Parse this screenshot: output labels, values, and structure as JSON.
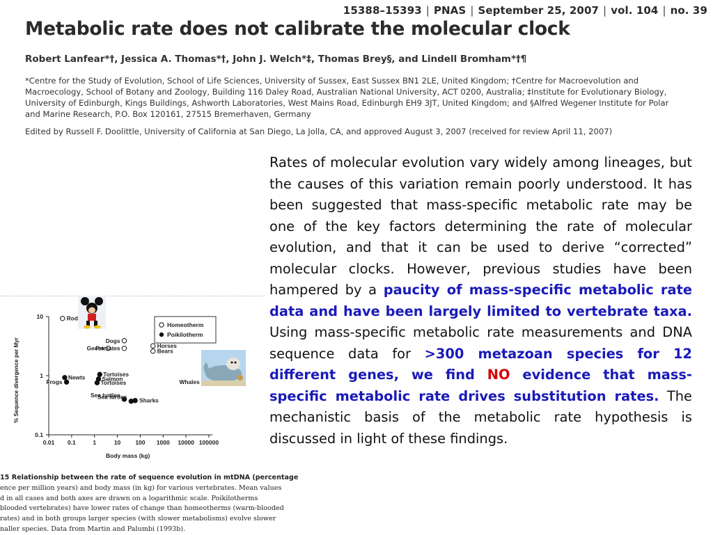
{
  "header": {
    "pages": "15388–15393",
    "journal": "PNAS",
    "date": "September 25, 2007",
    "volume": "vol. 104",
    "number": "no. 39"
  },
  "paper": {
    "title": "Metabolic rate does not calibrate the molecular clock",
    "authors": "Robert Lanfear*†, Jessica A. Thomas*†, John J. Welch*‡, Thomas Brey§, and Lindell Bromham*†¶",
    "affiliations": "*Centre for the Study of Evolution, School of Life Sciences, University of Sussex, East Sussex BN1 2LE, United Kingdom; †Centre for Macroevolution and Macroecology, School of Botany and Zoology, Building 116 Daley Road, Australian National University, ACT 0200, Australia; ‡Institute for Evolutionary Biology, University of Edinburgh, Kings Buildings, Ashworth Laboratories, West Mains Road, Edinburgh EH9 3JT, United Kingdom; and §Alfred Wegener Institute for Polar and Marine Research, P.O. Box 120161, 27515 Bremerhaven, Germany",
    "edited": "Edited by Russell F. Doolittle, University of California at San Diego, La Jolla, CA, and approved August 3, 2007 (received for review April 11, 2007)"
  },
  "abstract": {
    "p1": "Rates of molecular evolution vary widely among lineages, but the causes of this variation remain poorly understood. It has been suggested that mass-specific metabolic rate may be one of the key factors determining the rate of molecular evolution, and that it can be used to derive “corrected” molecular clocks. However, previous studies have been hampered by a ",
    "hl1": "paucity of mass-specific metabolic rate data and have been largely limited to vertebrate taxa.",
    "p2": " Using mass-specific metabolic rate measurements and DNA sequence data for ",
    "hl2a": ">300 metazoan species for 12 different genes, we find ",
    "no": "NO",
    "hl2b": " evidence that mass-specific metabolic rate drives substitution rates.",
    "p3": " The mechanistic basis of the metabolic rate hypothesis is discussed in light of these findings."
  },
  "figure": {
    "caption_lines": [
      "15  Relationship between the rate of sequence evolution in mtDNA (percentage",
      "ence per million years) and body mass (in kg) for various vertebrates. Mean values",
      "d in all cases and both axes are drawn on a logarithmic scale. Poikilotherms",
      "blooded vertebrates) have lower rates of change than homeotherms (warm-blooded",
      "rates) and in both groups larger species (with slower metabolisms) evolve slower",
      "naller species. Data from Martin and Palumbi (1993b)."
    ],
    "mickey_icon": "cartoon-mouse-icon",
    "whale_icon": "cartoon-whale-icon"
  },
  "chart_data": {
    "type": "scatter",
    "title": "",
    "xlabel": "Body mass (kg)",
    "ylabel": "% Sequence divergence per Myr",
    "xscale": "log",
    "yscale": "log",
    "xlim": [
      0.01,
      100000
    ],
    "ylim": [
      0.1,
      10
    ],
    "xticks": [
      "0.01",
      "0.1",
      "1",
      "10",
      "100",
      "1000",
      "10000",
      "100000"
    ],
    "yticks": [
      "10",
      "1",
      "0.1"
    ],
    "legend": {
      "position": "top-right",
      "entries": [
        "Homeotherm",
        "Poikilotherm"
      ]
    },
    "points": [
      {
        "label": "Rodent",
        "x": 0.04,
        "y": 9.3,
        "group": "Homeotherm"
      },
      {
        "label": "Dogs",
        "x": 20,
        "y": 3.9,
        "group": "Homeotherm"
      },
      {
        "label": "Geese",
        "x": 4,
        "y": 2.9,
        "group": "Homeotherm"
      },
      {
        "label": "Primates",
        "x": 20,
        "y": 2.9,
        "group": "Homeotherm"
      },
      {
        "label": "Horses",
        "x": 360,
        "y": 3.2,
        "group": "Homeotherm"
      },
      {
        "label": "Bears",
        "x": 360,
        "y": 2.6,
        "group": "Homeotherm"
      },
      {
        "label": "Whales",
        "x": 60000,
        "y": 0.78,
        "group": "Homeotherm"
      },
      {
        "label": "Newts",
        "x": 0.05,
        "y": 0.93,
        "group": "Poikilotherm"
      },
      {
        "label": "Frogs",
        "x": 0.06,
        "y": 0.78,
        "group": "Poikilotherm"
      },
      {
        "label": "Tortoises",
        "x": 1.7,
        "y": 1.05,
        "group": "Poikilotherm"
      },
      {
        "label": "Salmon",
        "x": 1.5,
        "y": 0.88,
        "group": "Poikilotherm"
      },
      {
        "label": "Tortoises",
        "x": 1.3,
        "y": 0.76,
        "group": "Poikilotherm"
      },
      {
        "label": "Sea turtles",
        "x": 20,
        "y": 0.4,
        "group": "Poikilotherm"
      },
      {
        "label": "Sea turtles",
        "x": 40,
        "y": 0.37,
        "group": "Poikilotherm"
      },
      {
        "label": "Sharks",
        "x": 60,
        "y": 0.38,
        "group": "Poikilotherm"
      }
    ]
  }
}
